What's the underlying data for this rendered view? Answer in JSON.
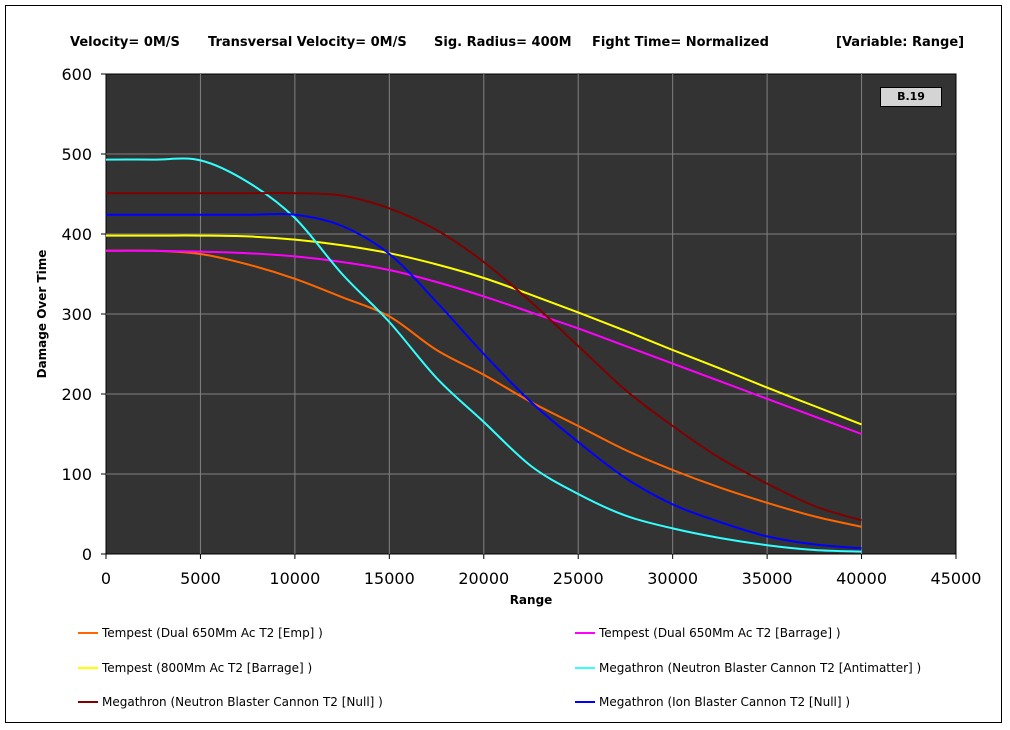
{
  "header": {
    "velocity": "Velocity= 0M/S",
    "transversal": "Transversal Velocity= 0M/S",
    "sig_radius": "Sig. Radius= 400M",
    "fight_time": "Fight Time= Normalized",
    "variable": "[Variable: Range]"
  },
  "badge": "B.19",
  "colors": {
    "plot_bg": "#333333",
    "grid": "#808080"
  },
  "chart_data": {
    "type": "line",
    "title": "",
    "xlabel": "Range",
    "ylabel": "Damage Over Time",
    "xlim": [
      0,
      45000
    ],
    "ylim": [
      0,
      600
    ],
    "xticks": [
      0,
      5000,
      10000,
      15000,
      20000,
      25000,
      30000,
      35000,
      40000,
      45000
    ],
    "yticks": [
      0,
      100,
      200,
      300,
      400,
      500,
      600
    ],
    "grid": true,
    "legend_position": "bottom",
    "series": [
      {
        "name": "Tempest (Dual 650Mm Ac T2 [Emp] )",
        "color": "#ff6600",
        "x": [
          0,
          2500,
          5000,
          7500,
          10000,
          12500,
          15000,
          17500,
          20000,
          22500,
          25000,
          27500,
          30000,
          32500,
          35000,
          37500,
          40000
        ],
        "y": [
          379,
          379,
          375,
          362,
          344,
          321,
          297,
          255,
          224,
          190,
          160,
          130,
          105,
          83,
          64,
          47,
          34
        ]
      },
      {
        "name": "Tempest (Dual 650Mm Ac T2 [Barrage] )",
        "color": "#ff00ff",
        "x": [
          0,
          2500,
          5000,
          7500,
          10000,
          12500,
          15000,
          17500,
          20000,
          22500,
          25000,
          27500,
          30000,
          32500,
          35000,
          37500,
          40000
        ],
        "y": [
          379,
          379,
          378,
          376,
          372,
          365,
          355,
          340,
          322,
          302,
          282,
          260,
          238,
          216,
          194,
          172,
          150
        ]
      },
      {
        "name": "Tempest (800Mm Ac T2 [Barrage] )",
        "color": "#ffff00",
        "x": [
          0,
          2500,
          5000,
          7500,
          10000,
          12500,
          15000,
          17500,
          20000,
          22500,
          25000,
          27500,
          30000,
          32500,
          35000,
          37500,
          40000
        ],
        "y": [
          398,
          398,
          398,
          397,
          393,
          386,
          376,
          362,
          345,
          324,
          302,
          279,
          255,
          232,
          208,
          185,
          162
        ]
      },
      {
        "name": "Megathron (Neutron Blaster Cannon T2 [Antimatter] )",
        "color": "#33ffff",
        "x": [
          0,
          2500,
          5000,
          7500,
          10000,
          12500,
          15000,
          17500,
          20000,
          22500,
          25000,
          27500,
          30000,
          32500,
          35000,
          37500,
          40000
        ],
        "y": [
          493,
          493,
          492,
          465,
          420,
          350,
          290,
          220,
          165,
          110,
          75,
          48,
          32,
          20,
          11,
          5,
          3
        ]
      },
      {
        "name": "Megathron (Neutron Blaster Cannon T2 [Null] )",
        "color": "#800000",
        "x": [
          0,
          2500,
          5000,
          7500,
          10000,
          12500,
          15000,
          17500,
          20000,
          22500,
          25000,
          27500,
          30000,
          32500,
          35000,
          37500,
          40000
        ],
        "y": [
          451,
          451,
          451,
          451,
          451,
          448,
          432,
          405,
          365,
          315,
          260,
          205,
          160,
          120,
          88,
          60,
          42
        ]
      },
      {
        "name": "Megathron (Ion Blaster Cannon T2 [Null] )",
        "color": "#0000ff",
        "x": [
          0,
          2500,
          5000,
          7500,
          10000,
          12500,
          15000,
          17500,
          20000,
          22500,
          25000,
          27500,
          30000,
          32500,
          35000,
          37500,
          40000
        ],
        "y": [
          424,
          424,
          424,
          424,
          424,
          410,
          375,
          315,
          250,
          190,
          140,
          95,
          62,
          40,
          22,
          12,
          7
        ]
      }
    ]
  }
}
